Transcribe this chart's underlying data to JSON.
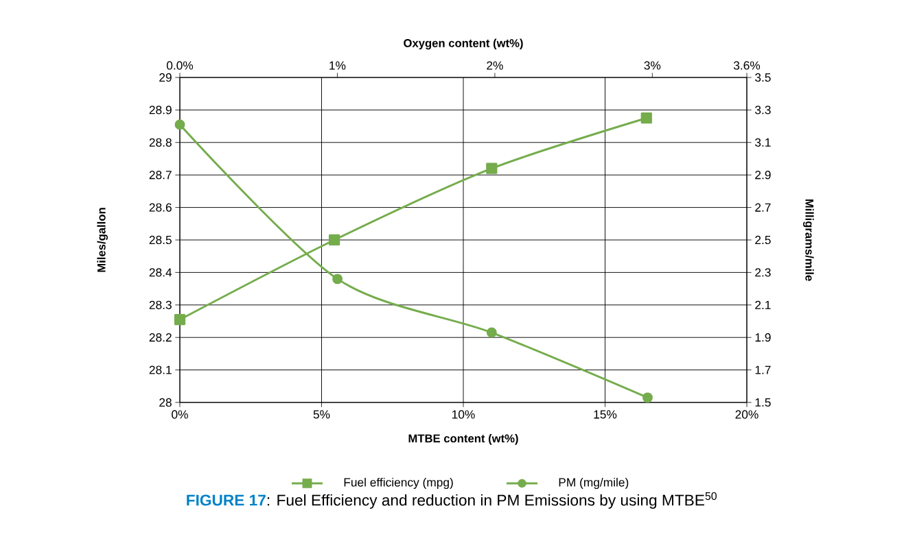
{
  "chart_data": {
    "type": "line",
    "xlabel": "MTBE content (wt%)",
    "ylabel": "Miles/gallon",
    "y2label": "Milligrams/mile",
    "x2label": "Oxygen content (wt%)",
    "xlim": [
      0,
      20
    ],
    "xticks": [
      {
        "value": 0,
        "label": "0%"
      },
      {
        "value": 5,
        "label": "5%"
      },
      {
        "value": 10,
        "label": "10%"
      },
      {
        "value": 15,
        "label": "15%"
      },
      {
        "value": 20,
        "label": "20%"
      }
    ],
    "ylim": [
      28,
      29
    ],
    "yticks": [
      28,
      28.1,
      28.2,
      28.3,
      28.4,
      28.5,
      28.6,
      28.7,
      28.8,
      28.9,
      29
    ],
    "y2lim": [
      1.5,
      3.5
    ],
    "y2ticks": [
      1.5,
      1.7,
      1.9,
      2.1,
      2.3,
      2.5,
      2.7,
      2.9,
      3.1,
      3.3,
      3.5
    ],
    "x2lim": [
      0,
      3.6
    ],
    "x2ticks": [
      {
        "value": 0,
        "label": "0.0%"
      },
      {
        "value": 1,
        "label": "1%"
      },
      {
        "value": 2,
        "label": "2%"
      },
      {
        "value": 3,
        "label": "3%"
      },
      {
        "value": 3.6,
        "label": "3.6%"
      }
    ],
    "grid": true,
    "legend": "bottom",
    "line_style": "solid",
    "series": [
      {
        "name": "Fuel efficiency (mpg)",
        "color": "#75ac4c",
        "marker": "square",
        "x": [
          0,
          5.45,
          11.0,
          16.46
        ],
        "values": [
          28.255,
          28.5,
          28.72,
          28.875
        ]
      },
      {
        "name": "PM (mg/mile)",
        "color": "#75ac4c",
        "marker": "circle",
        "axis": "y2",
        "x": [
          0,
          5.56,
          11.0,
          16.5
        ],
        "values": [
          3.21,
          2.26,
          1.93,
          1.53
        ]
      }
    ],
    "annotations": [
      "**FIGURE 17**",
      ": Fuel Efficiency and reduction in PM Emissions by using MTBE$^{50}$"
    ]
  }
}
